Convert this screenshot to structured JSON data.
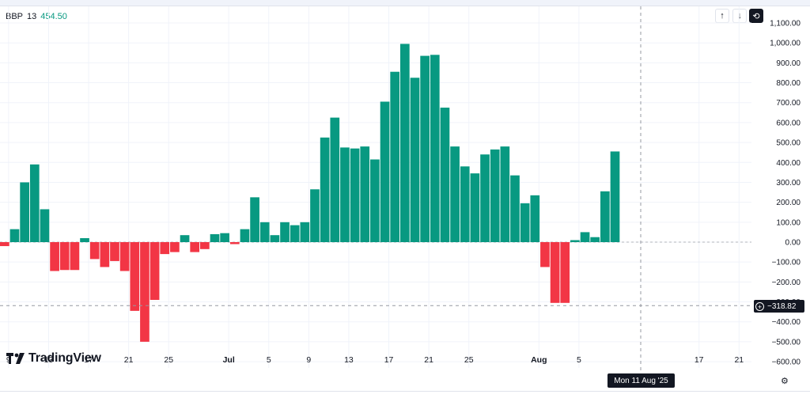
{
  "legend": {
    "name": "BBP",
    "length": "13",
    "value": "454.50"
  },
  "controls": {
    "up_label": "↑",
    "down_label": "↓",
    "reset_label": "⟲"
  },
  "logo": {
    "text": "TradingView"
  },
  "crosshair": {
    "price_label": "−318.82",
    "date_label": "Mon 11 Aug '25",
    "price_value": -318.82
  },
  "colors": {
    "positive": "#089981",
    "negative": "#f23645",
    "grid": "#f0f3fa",
    "axis_text": "#131722"
  },
  "chart_data": {
    "type": "bar",
    "title": "",
    "ylim": [
      -600,
      1100
    ],
    "y_ticks": [
      {
        "value": 1100,
        "label": "1,100.00"
      },
      {
        "value": 1000,
        "label": "1,000.00"
      },
      {
        "value": 900,
        "label": "900.00"
      },
      {
        "value": 800,
        "label": "800.00"
      },
      {
        "value": 700,
        "label": "700.00"
      },
      {
        "value": 600,
        "label": "600.00"
      },
      {
        "value": 500,
        "label": "500.00"
      },
      {
        "value": 400,
        "label": "400.00"
      },
      {
        "value": 300,
        "label": "300.00"
      },
      {
        "value": 200,
        "label": "200.00"
      },
      {
        "value": 100,
        "label": "100.00"
      },
      {
        "value": 0,
        "label": "0.00"
      },
      {
        "value": -100,
        "label": "−100.00"
      },
      {
        "value": -200,
        "label": "−200.00"
      },
      {
        "value": -300,
        "label": "−300.00"
      },
      {
        "value": -400,
        "label": "−400.00"
      },
      {
        "value": -500,
        "label": "−500.00"
      },
      {
        "value": -600,
        "label": "−600.00"
      }
    ],
    "x_ticks": [
      {
        "index": 0,
        "label": "9"
      },
      {
        "index": 4,
        "label": "13"
      },
      {
        "index": 8,
        "label": "17"
      },
      {
        "index": 12,
        "label": "21"
      },
      {
        "index": 16,
        "label": "25"
      },
      {
        "index": 22,
        "label": "Jul"
      },
      {
        "index": 26,
        "label": "5"
      },
      {
        "index": 30,
        "label": "9"
      },
      {
        "index": 34,
        "label": "13"
      },
      {
        "index": 38,
        "label": "17"
      },
      {
        "index": 42,
        "label": "21"
      },
      {
        "index": 46,
        "label": "25"
      },
      {
        "index": 53,
        "label": "Aug"
      },
      {
        "index": 57,
        "label": "5"
      },
      {
        "index": 69,
        "label": "17"
      },
      {
        "index": 73,
        "label": "21"
      }
    ],
    "values": [
      -20,
      65,
      300,
      390,
      165,
      -145,
      -140,
      -140,
      20,
      -85,
      -125,
      -95,
      -145,
      -345,
      -500,
      -290,
      -60,
      -50,
      35,
      -50,
      -35,
      40,
      45,
      -10,
      65,
      225,
      100,
      35,
      100,
      85,
      100,
      265,
      525,
      625,
      475,
      470,
      480,
      415,
      705,
      855,
      995,
      825,
      935,
      940,
      675,
      480,
      380,
      345,
      440,
      465,
      480,
      335,
      195,
      235,
      -125,
      -305,
      -305,
      10,
      50,
      25,
      255,
      455
    ]
  }
}
